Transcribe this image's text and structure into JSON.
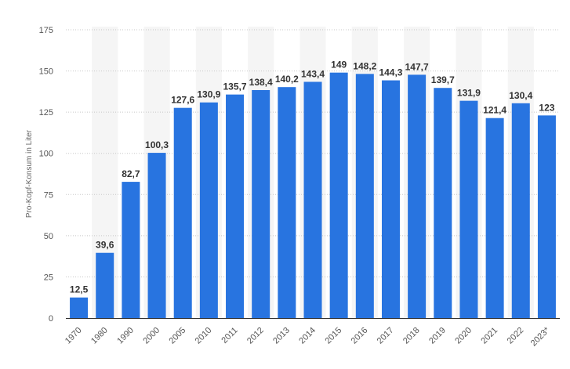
{
  "chart_data": {
    "type": "bar",
    "title": "",
    "xlabel": "",
    "ylabel": "Pro-Kopf-Konsum in Liter",
    "ylim": [
      0,
      175
    ],
    "yticks": [
      "0",
      "25",
      "50",
      "75",
      "100",
      "125",
      "150",
      "175"
    ],
    "ytick_values": [
      0,
      25,
      50,
      75,
      100,
      125,
      150,
      175
    ],
    "grid": true,
    "legend": "none",
    "bar_color": "#2874e0",
    "band_color": "#f5f5f5",
    "categories": [
      "1970",
      "1980",
      "1990",
      "2000",
      "2005",
      "2010",
      "2011",
      "2012",
      "2013",
      "2014",
      "2015",
      "2016",
      "2017",
      "2018",
      "2019",
      "2020",
      "2021",
      "2022",
      "2023*"
    ],
    "values": [
      12.5,
      39.6,
      82.7,
      100.3,
      127.6,
      130.9,
      135.7,
      138.4,
      140.2,
      143.4,
      149,
      148.2,
      144.3,
      147.7,
      139.7,
      131.9,
      121.4,
      130.4,
      123
    ],
    "value_labels": [
      "12,5",
      "39,6",
      "82,7",
      "100,3",
      "127,6",
      "130,9",
      "135,7",
      "138,4",
      "140,2",
      "143,4",
      "149",
      "148,2",
      "144,3",
      "147,7",
      "139,7",
      "131,9",
      "121,4",
      "130,4",
      "123"
    ]
  }
}
